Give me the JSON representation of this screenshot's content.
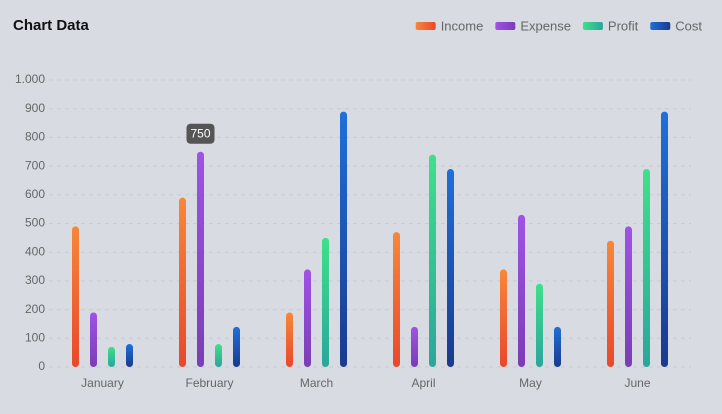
{
  "chart_data": {
    "type": "bar",
    "title": "Chart Data",
    "categories": [
      "January",
      "February",
      "March",
      "April",
      "May",
      "June"
    ],
    "series": [
      {
        "name": "Income",
        "color": [
          "#f7873a",
          "#e9482b"
        ],
        "values": [
          490,
          590,
          190,
          470,
          340,
          440
        ]
      },
      {
        "name": "Expense",
        "color": [
          "#a052e6",
          "#7b3db5"
        ],
        "values": [
          190,
          750,
          340,
          140,
          530,
          490
        ]
      },
      {
        "name": "Profit",
        "color": [
          "#3fe08a",
          "#2aa69b"
        ],
        "values": [
          70,
          80,
          450,
          740,
          290,
          690
        ]
      },
      {
        "name": "Cost",
        "color": [
          "#1f70d8",
          "#1a3a8e"
        ],
        "values": [
          80,
          140,
          890,
          690,
          140,
          890
        ]
      }
    ],
    "tooltip": "750",
    "ylim": [
      0,
      1000
    ],
    "yticks": [
      0,
      100,
      200,
      300,
      400,
      500,
      600,
      700,
      800,
      900,
      {
        "value": 1000,
        "label": "1.000"
      }
    ],
    "grid": true,
    "legend": "top-right"
  }
}
